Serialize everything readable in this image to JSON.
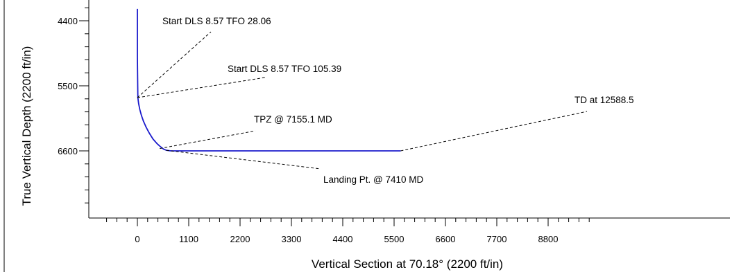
{
  "chart_data": {
    "type": "line",
    "xlabel": "Vertical Section at 70.18° (2200 ft/in)",
    "ylabel": "True Vertical Depth (2200 ft/in)",
    "xlim": [
      -800,
      9800
    ],
    "ylim": [
      7600,
      4200
    ],
    "x_ticks": [
      0,
      1100,
      2200,
      3300,
      4400,
      5500,
      6600,
      7700,
      8800
    ],
    "x_tick_labels": [
      "0",
      "1100",
      "2200",
      "3300",
      "4400",
      "5500",
      "6600",
      "7700",
      "8800"
    ],
    "x_minor_step": 220,
    "y_ticks": [
      4400,
      5500,
      6600
    ],
    "y_tick_labels": [
      "4400",
      "5500",
      "6600"
    ],
    "y_minor_step": 220,
    "colors": {
      "well_path": "#1a1acc",
      "axis": "#000000",
      "leader": "#000000"
    },
    "series": [
      {
        "x": [
          0,
          0,
          0,
          3,
          11,
          27,
          52,
          86,
          131,
          188,
          256,
          335,
          424,
          495,
          560,
          620,
          720,
          1500,
          3000,
          4500,
          5640
        ],
        "y": [
          4200,
          4600,
          5000,
          5220,
          5700,
          5800,
          5900,
          6000,
          6100,
          6200,
          6300,
          6400,
          6480,
          6530,
          6570,
          6590,
          6600,
          6600,
          6600,
          6600,
          6600
        ]
      }
    ],
    "annotations": [
      {
        "text": "Start DLS 8.57 TFO 28.06",
        "point": [
          0,
          5700
        ]
      },
      {
        "text": "Start DLS 8.57 TFO 105.39",
        "point": [
          0,
          5700
        ]
      },
      {
        "text": "TPZ @ 7155.1 MD",
        "point": [
          480,
          6560
        ]
      },
      {
        "text": "Landing Pt. @ 7410 MD",
        "point": [
          620,
          6590
        ]
      },
      {
        "text": "TD at 12588.5",
        "point": [
          5640,
          6600
        ]
      }
    ]
  }
}
